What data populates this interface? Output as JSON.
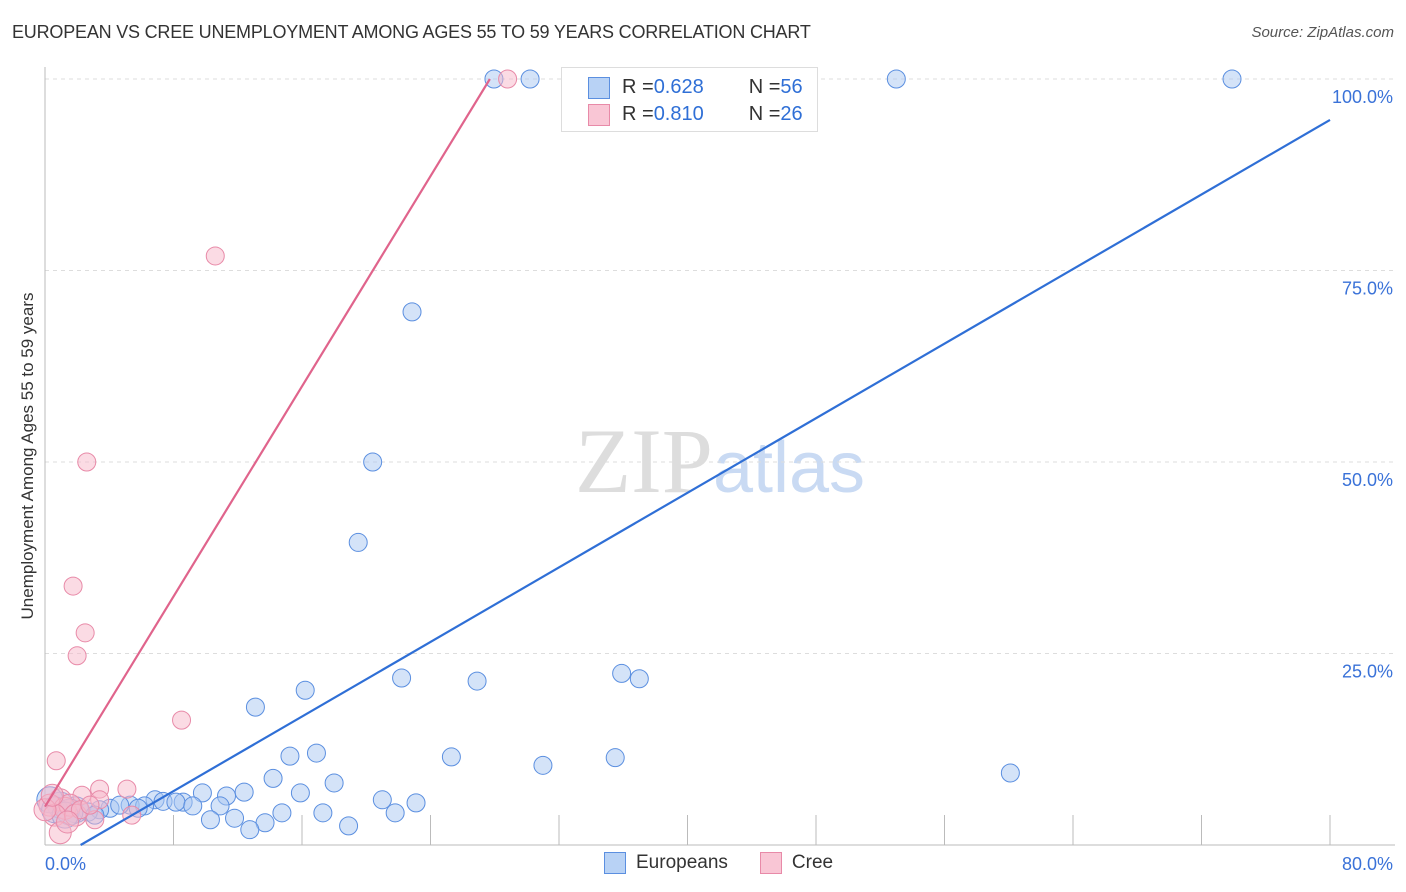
{
  "title": "EUROPEAN VS CREE UNEMPLOYMENT AMONG AGES 55 TO 59 YEARS CORRELATION CHART",
  "source": "Source: ZipAtlas.com",
  "watermark": "ZIPatlas",
  "legend": {
    "rows": [
      {
        "r_label": "R = ",
        "r": "0.628",
        "n_label": "N = ",
        "n": "56"
      },
      {
        "r_label": "R = ",
        "r": "0.810",
        "n_label": "N = ",
        "n": "26"
      }
    ],
    "bottom": [
      "Europeans",
      "Cree"
    ]
  },
  "colors": {
    "europeans": "#2f6fd6",
    "europeans_fill": "#a9c8f2",
    "cree": "#e0648c",
    "cree_fill": "#f7b7ca"
  },
  "chart_data": {
    "type": "scatter",
    "title": "EUROPEAN VS CREE UNEMPLOYMENT AMONG AGES 55 TO 59 YEARS CORRELATION CHART",
    "xlabel": "",
    "ylabel": "Unemployment Among Ages 55 to 59 years",
    "xlim": [
      0,
      80
    ],
    "ylim": [
      0,
      100
    ],
    "x_tick_labels": [
      "0.0%",
      "80.0%"
    ],
    "y_tick_labels": [
      {
        "v": 100,
        "t": "100.0%"
      },
      {
        "v": 75,
        "t": "75.0%"
      },
      {
        "v": 50,
        "t": "50.0%"
      },
      {
        "v": 25,
        "t": "25.0%"
      }
    ],
    "series": [
      {
        "name": "Europeans",
        "r": 0.628,
        "n": 56,
        "trend": {
          "slope": 1.217,
          "intercept": -2.7
        },
        "points": [
          [
            27.95,
            100
          ],
          [
            30.2,
            100
          ],
          [
            33.1,
            100
          ],
          [
            53.0,
            100
          ],
          [
            73.9,
            100
          ],
          [
            22.85,
            69.6
          ],
          [
            20.4,
            50.0
          ],
          [
            19.5,
            39.5
          ],
          [
            16.2,
            20.2
          ],
          [
            13.1,
            18.0
          ],
          [
            22.2,
            21.8
          ],
          [
            26.9,
            21.4
          ],
          [
            35.9,
            22.4
          ],
          [
            37.0,
            21.7
          ],
          [
            15.25,
            11.6
          ],
          [
            16.9,
            12.0
          ],
          [
            25.3,
            11.5
          ],
          [
            31.0,
            10.4
          ],
          [
            35.5,
            11.4
          ],
          [
            60.1,
            9.4
          ],
          [
            14.2,
            8.7
          ],
          [
            18.0,
            8.1
          ],
          [
            12.4,
            6.9
          ],
          [
            15.9,
            6.8
          ],
          [
            9.8,
            6.8
          ],
          [
            11.3,
            6.4
          ],
          [
            21.0,
            5.9
          ],
          [
            23.1,
            5.5
          ],
          [
            6.85,
            5.9
          ],
          [
            7.35,
            5.7
          ],
          [
            8.6,
            5.6
          ],
          [
            8.15,
            5.6
          ],
          [
            9.2,
            5.1
          ],
          [
            10.9,
            5.1
          ],
          [
            5.3,
            5.2
          ],
          [
            6.2,
            5.1
          ],
          [
            4.05,
            4.8
          ],
          [
            3.4,
            4.6
          ],
          [
            2.7,
            4.3
          ],
          [
            1.9,
            4.6
          ],
          [
            0.95,
            5.2
          ],
          [
            0.3,
            5.9
          ],
          [
            0.6,
            4.6
          ],
          [
            1.55,
            4.3
          ],
          [
            10.3,
            3.3
          ],
          [
            11.8,
            3.5
          ],
          [
            13.7,
            2.9
          ],
          [
            14.75,
            4.2
          ],
          [
            17.3,
            4.2
          ],
          [
            18.9,
            2.5
          ],
          [
            21.8,
            4.2
          ],
          [
            12.75,
            2.0
          ],
          [
            4.65,
            5.2
          ],
          [
            5.8,
            4.8
          ],
          [
            1.25,
            3.9
          ],
          [
            3.1,
            3.9
          ]
        ]
      },
      {
        "name": "Cree",
        "r": 0.81,
        "n": 26,
        "trend": {
          "slope": 3.43,
          "intercept": 5.0
        },
        "points": [
          [
            28.8,
            100
          ],
          [
            10.6,
            76.9
          ],
          [
            2.6,
            50.0
          ],
          [
            1.75,
            33.8
          ],
          [
            2.5,
            27.7
          ],
          [
            2.0,
            24.7
          ],
          [
            8.5,
            16.3
          ],
          [
            0.7,
            11.0
          ],
          [
            5.1,
            7.3
          ],
          [
            3.4,
            7.3
          ],
          [
            2.3,
            6.5
          ],
          [
            3.4,
            5.9
          ],
          [
            0.95,
            5.9
          ],
          [
            0.3,
            5.2
          ],
          [
            1.25,
            4.8
          ],
          [
            1.55,
            5.2
          ],
          [
            0.6,
            3.9
          ],
          [
            1.9,
            3.9
          ],
          [
            3.1,
            3.3
          ],
          [
            0.95,
            1.6
          ],
          [
            5.4,
            3.9
          ],
          [
            0.0,
            4.6
          ],
          [
            2.2,
            4.6
          ],
          [
            2.8,
            5.2
          ],
          [
            1.4,
            3.0
          ],
          [
            0.45,
            6.5
          ]
        ]
      }
    ]
  }
}
